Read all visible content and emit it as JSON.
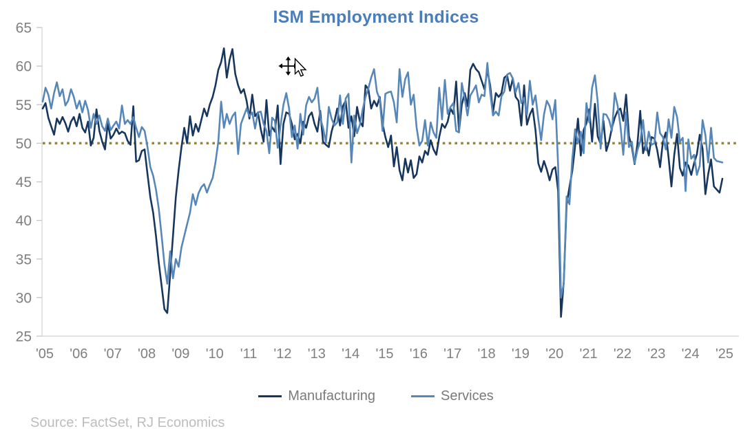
{
  "title": "ISM Employment Indices",
  "source": "Source: FactSet, RJ Economics",
  "colors": {
    "title": "#4a7ebb",
    "manufacturing": "#17365d",
    "services": "#5687b8",
    "reference_line": "#9a842d",
    "axis_line": "#d9d9d9",
    "tick_mark": "#c9c9c9",
    "axis_text": "#7f7f7f",
    "legend_text": "#7a7a7a",
    "source_text": "#bdbdbd"
  },
  "icons": {
    "cursor": "move-pointer-cursor"
  },
  "legend": {
    "items": [
      {
        "label": "Manufacturing"
      },
      {
        "label": "Services"
      }
    ]
  },
  "chart_data": {
    "type": "line",
    "title": "ISM Employment Indices",
    "frequency": "monthly",
    "x_start": "2005-01",
    "x_end": "2025-01",
    "x_tick_labels": [
      "'05",
      "'06",
      "'07",
      "'08",
      "'09",
      "'10",
      "'11",
      "'12",
      "'13",
      "'14",
      "'15",
      "'16",
      "'17",
      "'18",
      "'19",
      "'20",
      "'21",
      "'22",
      "'23",
      "'24",
      "'25"
    ],
    "y_ticks": [
      25,
      30,
      35,
      40,
      45,
      50,
      55,
      60,
      65
    ],
    "ylim": [
      25,
      65
    ],
    "reference_line": 50,
    "grid": "off",
    "legend_position": "bottom",
    "series": [
      {
        "name": "Manufacturing",
        "color": "#17365d",
        "values": [
          54.5,
          55.2,
          53.3,
          52.2,
          51.1,
          53.2,
          52.5,
          53.4,
          52.6,
          51.5,
          52.8,
          53.4,
          52.2,
          53.8,
          52.0,
          51.4,
          52.8,
          49.7,
          50.7,
          54.4,
          51.6,
          50.2,
          49.2,
          52.6,
          50.6,
          51.1,
          51.9,
          51.2,
          51.5,
          51.3,
          50.3,
          49.8,
          54.8,
          47.6,
          47.8,
          49.0,
          49.2,
          46.0,
          43.0,
          41.0,
          38.0,
          34.5,
          31.5,
          28.5,
          28.0,
          33.0,
          38.0,
          43.0,
          46.5,
          49.5,
          52.0,
          50.0,
          53.5,
          51.0,
          52.5,
          51.5,
          53.0,
          54.5,
          53.5,
          55.0,
          56.0,
          57.5,
          59.5,
          60.5,
          62.3,
          58.5,
          60.8,
          62.2,
          59.0,
          57.5,
          56.5,
          57.0,
          55.5,
          53.2,
          56.3,
          53.5,
          54.0,
          51.8,
          50.2,
          55.6,
          51.0,
          52.1,
          51.5,
          54.9,
          47.3,
          52.5,
          54.0,
          53.8,
          52.5,
          50.5,
          51.2,
          50.0,
          52.8,
          52.0,
          53.5,
          54.0,
          52.5,
          51.5,
          54.2,
          50.2,
          49.8,
          49.5,
          51.5,
          52.8,
          54.5,
          52.3,
          54.8,
          55.5,
          52.0,
          53.5,
          50.9,
          54.7,
          52.8,
          52.2,
          57.5,
          57.0,
          54.5,
          55.5,
          54.8,
          56.0,
          52.5,
          50.8,
          49.5,
          51.0,
          47.0,
          49.5,
          46.5,
          45.2,
          48.0,
          46.2,
          47.8,
          45.5,
          46.0,
          48.3,
          47.5,
          49.0,
          48.5,
          50.4,
          49.2,
          48.5,
          50.8,
          52.5,
          52.0,
          52.8,
          54.5,
          53.8,
          58.0,
          51.5,
          55.0,
          56.5,
          54.8,
          59.5,
          60.3,
          59.6,
          59.2,
          58.1,
          57.0,
          59.5,
          57.5,
          54.0,
          56.5,
          56.0,
          56.5,
          58.5,
          58.8,
          56.8,
          58.4,
          56.0,
          55.5,
          52.3,
          57.5,
          52.4,
          53.7,
          54.5,
          51.7,
          47.4,
          46.3,
          47.7,
          46.6,
          45.2,
          46.6,
          46.9,
          43.8,
          27.5,
          32.1,
          42.1,
          44.3,
          46.4,
          49.6,
          53.2,
          48.4,
          51.7,
          52.6,
          54.4,
          50.2,
          55.1,
          50.9,
          49.9,
          52.9,
          49.0,
          50.2,
          52.0,
          53.3,
          54.2,
          54.5,
          52.9,
          56.3,
          50.9,
          49.6,
          47.3,
          49.9,
          54.2,
          48.7,
          50.0,
          48.4,
          50.8,
          50.6,
          49.1,
          46.9,
          50.2,
          51.4,
          48.1,
          44.4,
          48.5,
          51.2,
          46.8,
          45.8,
          47.5,
          47.1,
          45.9,
          47.4,
          48.6,
          51.1,
          49.3,
          43.4,
          46.0,
          47.9,
          44.4,
          44.0,
          43.6,
          45.4
        ]
      },
      {
        "name": "Services",
        "color": "#5687b8",
        "values": [
          55.4,
          57.2,
          56.3,
          54.5,
          56.5,
          57.9,
          56.1,
          57.0,
          54.9,
          55.5,
          57.0,
          56.0,
          54.5,
          55.5,
          54.0,
          55.5,
          54.3,
          52.0,
          53.8,
          52.5,
          53.6,
          52.2,
          51.6,
          53.2,
          51.7,
          52.3,
          52.8,
          51.9,
          54.9,
          52.5,
          53.0,
          52.5,
          53.4,
          52.0,
          50.8,
          52.1,
          51.6,
          49.5,
          46.9,
          45.8,
          44.0,
          41.5,
          38.0,
          34.3,
          31.8,
          36.0,
          32.5,
          35.0,
          34.0,
          36.5,
          38.0,
          39.5,
          41.0,
          43.4,
          42.0,
          43.5,
          44.3,
          44.7,
          43.6,
          44.6,
          45.5,
          47.5,
          50.2,
          55.4,
          52.0,
          53.8,
          52.5,
          53.5,
          54.0,
          48.6,
          52.5,
          53.5,
          54.5,
          53.5,
          54.0,
          51.9,
          54.0,
          54.1,
          52.5,
          51.6,
          48.7,
          53.3,
          52.9,
          49.4,
          52.3,
          55.0,
          56.5,
          54.5,
          50.8,
          52.3,
          49.3,
          53.8,
          51.1,
          54.9,
          56.0,
          55.3,
          55.8,
          57.2,
          53.3,
          52.0,
          50.1,
          54.7,
          53.2,
          52.3,
          52.7,
          56.2,
          52.5,
          55.8,
          56.4,
          47.5,
          53.6,
          51.3,
          52.4,
          54.4,
          56.0,
          57.1,
          58.5,
          59.6,
          56.7,
          55.7,
          51.6,
          56.4,
          56.6,
          56.7,
          55.3,
          52.7,
          59.6,
          56.0,
          58.3,
          59.2,
          55.0,
          56.3,
          52.1,
          49.7,
          50.3,
          53.0,
          49.7,
          52.7,
          51.4,
          50.7,
          57.2,
          53.1,
          58.2,
          53.8,
          54.7,
          55.2,
          51.6,
          51.4,
          57.8,
          55.8,
          53.6,
          56.2,
          56.8,
          57.5,
          55.3,
          56.3,
          56.1,
          60.4,
          56.6,
          53.6,
          54.1,
          53.6,
          56.1,
          56.7,
          58.9,
          59.1,
          58.4,
          56.6,
          57.8,
          55.2,
          55.9,
          53.7,
          58.1,
          55.0,
          56.2,
          53.1,
          50.4,
          53.7,
          55.5,
          54.8,
          53.1,
          55.6,
          47.0,
          30.0,
          31.8,
          43.1,
          42.1,
          47.9,
          51.8,
          50.1,
          51.5,
          48.7,
          55.2,
          52.7,
          57.2,
          58.8,
          55.3,
          49.3,
          53.8,
          53.7,
          53.0,
          51.6,
          56.5,
          54.9,
          52.3,
          48.5,
          54.0,
          49.5,
          50.2,
          47.4,
          49.1,
          50.2,
          53.0,
          49.1,
          51.5,
          49.8,
          50.0,
          54.0,
          51.3,
          50.8,
          49.2,
          53.1,
          50.7,
          54.7,
          53.4,
          50.2,
          50.7,
          43.8,
          50.5,
          48.0,
          48.5,
          45.9,
          47.1,
          53.0,
          51.1,
          47.5,
          52.0,
          48.1,
          47.7,
          47.6,
          47.5
        ]
      }
    ]
  }
}
